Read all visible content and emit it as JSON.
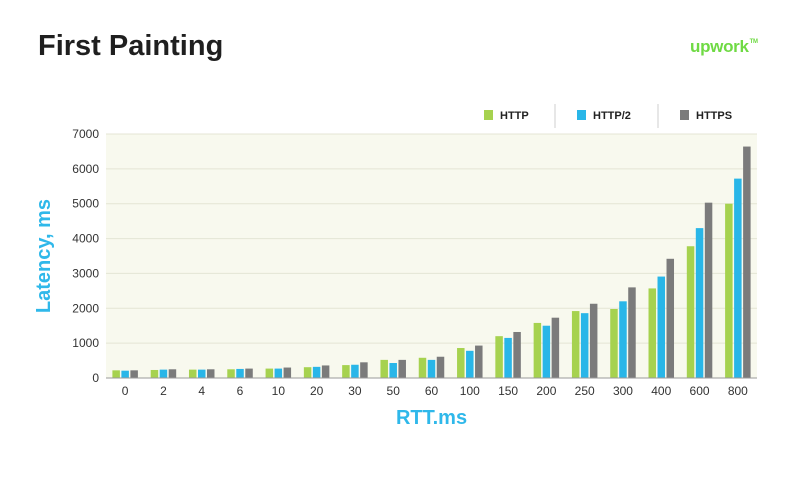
{
  "header": {
    "title": "First Painting",
    "logo_text": "upwork",
    "logo_tm": "TM"
  },
  "colors": {
    "brand_green": "#6fda44",
    "axis_title": "#2fb8ea",
    "plot_background": "#f8f9ee",
    "grid": "#e4e5d4"
  },
  "chart_data": {
    "type": "bar",
    "title": "First Painting",
    "xlabel": "RTT.ms",
    "ylabel": "Latency, ms",
    "ylim": [
      0,
      7000
    ],
    "yticks": [
      0,
      1000,
      2000,
      3000,
      4000,
      5000,
      6000,
      7000
    ],
    "grid": true,
    "legend_position": "top-right",
    "categories": [
      "0",
      "2",
      "4",
      "6",
      "10",
      "20",
      "30",
      "50",
      "60",
      "100",
      "150",
      "200",
      "250",
      "300",
      "400",
      "600",
      "800"
    ],
    "series": [
      {
        "name": "HTTP",
        "color": "#a6d24f",
        "values": [
          220,
          230,
          240,
          250,
          270,
          310,
          370,
          520,
          580,
          860,
          1200,
          1580,
          1920,
          1980,
          2570,
          3780,
          5000
        ]
      },
      {
        "name": "HTTP/2",
        "color": "#29b6e8",
        "values": [
          210,
          240,
          240,
          260,
          270,
          320,
          380,
          430,
          520,
          780,
          1150,
          1500,
          1860,
          2200,
          2910,
          4300,
          5720
        ]
      },
      {
        "name": "HTTPS",
        "color": "#7b7b7b",
        "values": [
          220,
          250,
          250,
          270,
          300,
          360,
          450,
          520,
          610,
          930,
          1320,
          1730,
          2130,
          2600,
          3420,
          5030,
          6640
        ]
      }
    ]
  }
}
